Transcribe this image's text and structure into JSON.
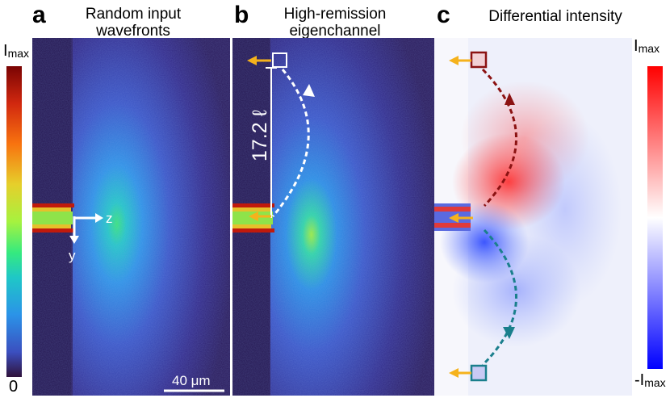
{
  "panels": [
    {
      "letter": "a",
      "title_line1": "Random input",
      "title_line2": "wavefronts"
    },
    {
      "letter": "b",
      "title_line1": "High-remission",
      "title_line2": "eigenchannel"
    },
    {
      "letter": "c",
      "title_line1": "Differential intensity",
      "title_line2": ""
    }
  ],
  "colorbar_left": {
    "top_main": "I",
    "top_sub": "max",
    "bottom": "0"
  },
  "colorbar_right": {
    "top_main": "I",
    "top_sub": "max",
    "bottom_main": "-I",
    "bottom_sub": "max"
  },
  "axes": {
    "z_label": "z",
    "y_label": "y"
  },
  "scale_bar": {
    "label": "40 μm"
  },
  "distance": {
    "label": "17.2 ℓ"
  },
  "colors": {
    "arrow": "#f5b21c",
    "high_remission_path": "#ffffff",
    "red_path": "#8b1212",
    "teal_path": "#1a7f8c"
  }
}
